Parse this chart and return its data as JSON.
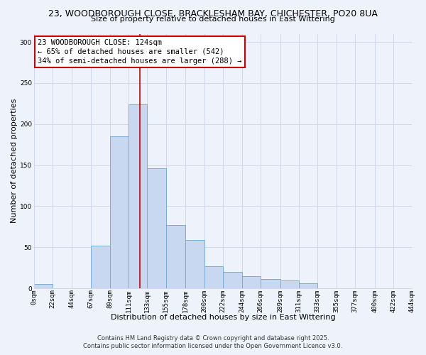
{
  "title": "23, WOODBOROUGH CLOSE, BRACKLESHAM BAY, CHICHESTER, PO20 8UA",
  "subtitle": "Size of property relative to detached houses in East Wittering",
  "xlabel": "Distribution of detached houses by size in East Wittering",
  "ylabel": "Number of detached properties",
  "bar_edges": [
    0,
    22,
    44,
    67,
    89,
    111,
    133,
    155,
    178,
    200,
    222,
    244,
    266,
    289,
    311,
    333,
    355,
    377,
    400,
    422,
    444
  ],
  "bar_heights": [
    5,
    0,
    0,
    52,
    185,
    224,
    146,
    77,
    59,
    27,
    20,
    15,
    11,
    10,
    6,
    0,
    0,
    0,
    0,
    0
  ],
  "bar_color": "#c8d8f0",
  "bar_edge_color": "#7bafd4",
  "vline_x": 124,
  "vline_color": "#cc0000",
  "annotation_text": "23 WOODBOROUGH CLOSE: 124sqm\n← 65% of detached houses are smaller (542)\n34% of semi-detached houses are larger (288) →",
  "annotation_box_edge_color": "#cc0000",
  "annotation_box_face_color": "#ffffff",
  "ylim": [
    0,
    310
  ],
  "yticks": [
    0,
    50,
    100,
    150,
    200,
    250,
    300
  ],
  "tick_labels": [
    "0sqm",
    "22sqm",
    "44sqm",
    "67sqm",
    "89sqm",
    "111sqm",
    "133sqm",
    "155sqm",
    "178sqm",
    "200sqm",
    "222sqm",
    "244sqm",
    "266sqm",
    "289sqm",
    "311sqm",
    "333sqm",
    "355sqm",
    "377sqm",
    "400sqm",
    "422sqm",
    "444sqm"
  ],
  "bg_color": "#eef2fb",
  "footer_line1": "Contains HM Land Registry data © Crown copyright and database right 2025.",
  "footer_line2": "Contains public sector information licensed under the Open Government Licence v3.0.",
  "grid_color": "#d0d8ec",
  "title_fontsize": 9,
  "subtitle_fontsize": 8,
  "label_fontsize": 8,
  "tick_fontsize": 6.5,
  "footer_fontsize": 6,
  "annot_fontsize": 7.5
}
